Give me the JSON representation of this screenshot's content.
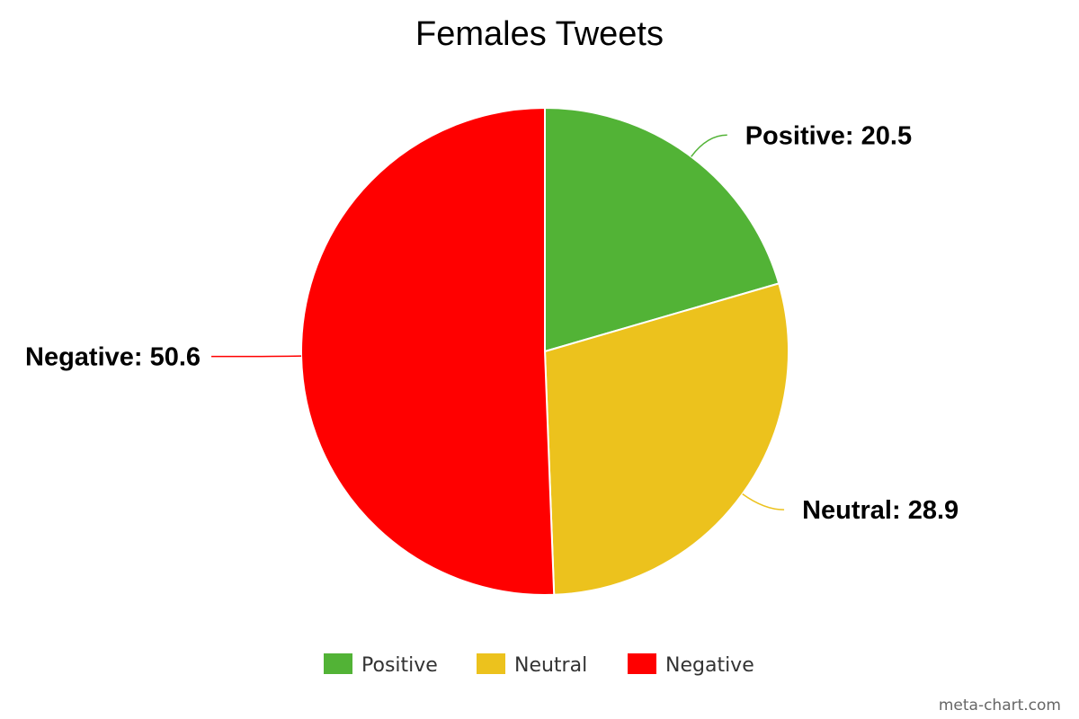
{
  "chart_data": {
    "type": "pie",
    "title": "Females Tweets",
    "slices": [
      {
        "label": "Positive",
        "value": 20.5,
        "color": "#52b336"
      },
      {
        "label": "Neutral",
        "value": 28.9,
        "color": "#ecc21d"
      },
      {
        "label": "Negative",
        "value": 50.6,
        "color": "#ff0000"
      }
    ],
    "legend": {
      "placement": "bottom",
      "items": [
        "Positive",
        "Neutral",
        "Negative"
      ]
    },
    "data_label_format": "{label}: {value}"
  },
  "credit": "meta-chart.com"
}
